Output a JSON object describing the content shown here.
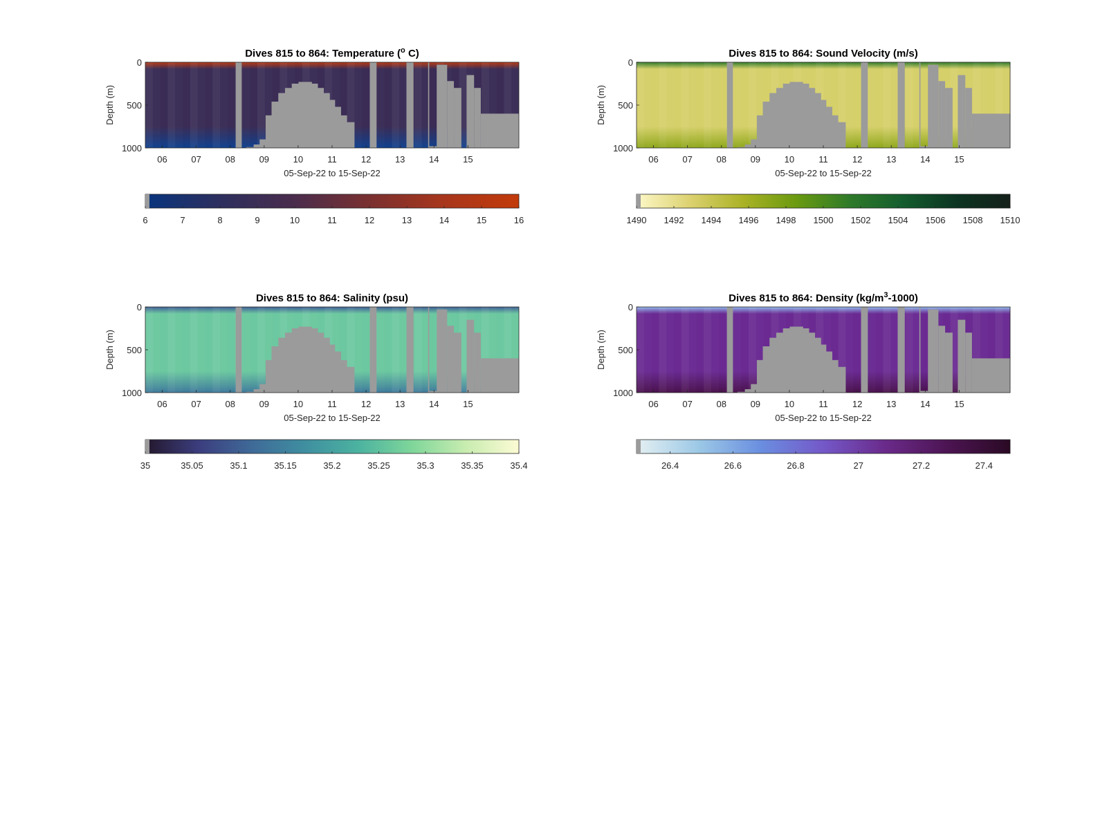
{
  "chart_data": [
    {
      "id": "temperature",
      "type": "heatmap",
      "title_main": "Dives 815 to 864: Temperature (",
      "title_sup": "o",
      "title_end": " C)",
      "xlabel": "05-Sep-22 to 15-Sep-22",
      "ylabel": "Depth (m)",
      "x_ticks": [
        "06",
        "07",
        "08",
        "09",
        "10",
        "11",
        "12",
        "13",
        "14",
        "15"
      ],
      "y_ticks": [
        "0",
        "500",
        "1000"
      ],
      "ylim": [
        0,
        1000
      ],
      "colorbar": {
        "ticks": [
          "6",
          "7",
          "8",
          "9",
          "10",
          "11",
          "12",
          "13",
          "14",
          "15",
          "16"
        ],
        "colors": [
          "#08347e",
          "#2d2f5e",
          "#4a2c4c",
          "#7a3030",
          "#a8361c",
          "#c23a0a"
        ]
      },
      "surface_color": "#b83a14",
      "deep_color": "#10408e",
      "mid_color": "#3a2c55"
    },
    {
      "id": "sound-velocity",
      "type": "heatmap",
      "title_main": "Dives 815 to 864: Sound Velocity (m/s)",
      "title_sup": "",
      "title_end": "",
      "xlabel": "05-Sep-22 to 15-Sep-22",
      "ylabel": "Depth (m)",
      "x_ticks": [
        "06",
        "07",
        "08",
        "09",
        "10",
        "11",
        "12",
        "13",
        "14",
        "15"
      ],
      "y_ticks": [
        "0",
        "500",
        "1000"
      ],
      "ylim": [
        0,
        1000
      ],
      "colorbar": {
        "ticks": [
          "1490",
          "1492",
          "1494",
          "1496",
          "1498",
          "1500",
          "1502",
          "1504",
          "1506",
          "1508",
          "1510"
        ],
        "colors": [
          "#fdf8c8",
          "#dcd170",
          "#aab225",
          "#6a9a10",
          "#2e7a2a",
          "#145c2e",
          "#0c3422",
          "#14201a"
        ]
      },
      "surface_color": "#2f7a2a",
      "deep_color": "#8fa81c",
      "mid_color": "#d6d06a"
    },
    {
      "id": "salinity",
      "type": "heatmap",
      "title_main": "Dives 815 to 864: Salinity (psu)",
      "title_sup": "",
      "title_end": "",
      "xlabel": "05-Sep-22 to 15-Sep-22",
      "ylabel": "Depth (m)",
      "x_ticks": [
        "06",
        "07",
        "08",
        "09",
        "10",
        "11",
        "12",
        "13",
        "14",
        "15"
      ],
      "y_ticks": [
        "0",
        "500",
        "1000"
      ],
      "ylim": [
        0,
        1000
      ],
      "colorbar": {
        "ticks": [
          "35",
          "35.05",
          "35.1",
          "35.15",
          "35.2",
          "35.25",
          "35.3",
          "35.35",
          "35.4"
        ],
        "colors": [
          "#24182c",
          "#3b3d7e",
          "#3f6a98",
          "#3f8fa0",
          "#4cb3a0",
          "#7fd69a",
          "#c8ecb0",
          "#fcfbd4"
        ]
      },
      "surface_color": "#3f5f96",
      "deep_color": "#3f7a9c",
      "mid_color": "#6cc8a0"
    },
    {
      "id": "density",
      "type": "heatmap",
      "title_main": "Dives 815 to 864: Density (kg/m",
      "title_sup": "3",
      "title_end": "-1000)",
      "xlabel": "05-Sep-22 to 15-Sep-22",
      "ylabel": "Depth (m)",
      "x_ticks": [
        "06",
        "07",
        "08",
        "09",
        "10",
        "11",
        "12",
        "13",
        "14",
        "15"
      ],
      "y_ticks": [
        "0",
        "500",
        "1000"
      ],
      "ylim": [
        0,
        1000
      ],
      "colorbar": {
        "ticks": [
          "26.4",
          "26.6",
          "26.8",
          "27",
          "27.2",
          "27.4"
        ],
        "colors": [
          "#e4f0f2",
          "#9cc8e6",
          "#6a8ee0",
          "#7458c8",
          "#6a2a8a",
          "#4c1452",
          "#2a0a24"
        ]
      },
      "surface_color": "#8fb6ea",
      "deep_color": "#4a124c",
      "mid_color": "#6a2a92"
    }
  ]
}
